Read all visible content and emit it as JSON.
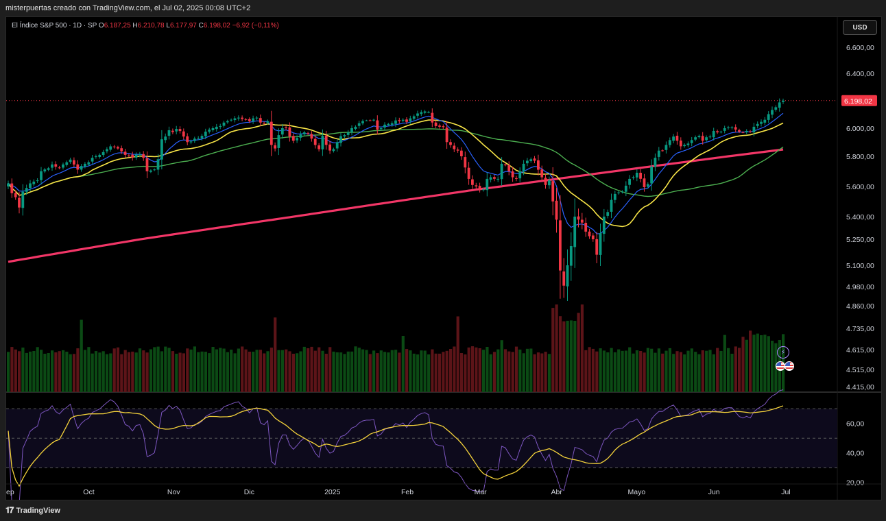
{
  "header": {
    "caption": "misterpuertas creado con TradingView.com, el Jul 02, 2025 00:08 UTC+2"
  },
  "legend": {
    "symbol": "El Índice S&P 500 · 1D · SP",
    "o_label": "O",
    "o_value": "6.187,25",
    "h_label": "H",
    "h_value": "6.210,78",
    "l_label": "L",
    "l_value": "6.177,97",
    "c_label": "C",
    "c_value": "6.198,02",
    "change": "−6,92 (−0,11%)"
  },
  "currency": "USD",
  "footer": {
    "brand": "TradingView"
  },
  "colors": {
    "up": "#089981",
    "down": "#f23645",
    "vol_up": "#0b4a14",
    "vol_down": "#5c1418",
    "ma_blue": "#2962ff",
    "ma_yellow": "#f7e447",
    "ma_green": "#4caf50",
    "ma_red": "#f23667",
    "rsi_line": "#7e57c2",
    "rsi_ma": "#f5d33b",
    "price_tag": "#f23645"
  },
  "chart_data": {
    "type": "candlestick",
    "price_axis": {
      "ticks": [
        {
          "v": 6600,
          "label": "6.600,00"
        },
        {
          "v": 6400,
          "label": "6.400,00"
        },
        {
          "v": 6000,
          "label": "6.000,00"
        },
        {
          "v": 5800,
          "label": "5.800,00"
        },
        {
          "v": 5600,
          "label": "5.600,00"
        },
        {
          "v": 5400,
          "label": "5.400,00"
        },
        {
          "v": 5250,
          "label": "5.250,00"
        },
        {
          "v": 5100,
          "label": "5.100,00"
        },
        {
          "v": 4980,
          "label": "4.980,00"
        },
        {
          "v": 4860,
          "label": "4.860,00"
        },
        {
          "v": 4735,
          "label": "4.735,00"
        },
        {
          "v": 4615,
          "label": "4.615,00"
        },
        {
          "v": 4515,
          "label": "4.515,00"
        },
        {
          "v": 4415,
          "label": "4.415,00"
        }
      ],
      "last_price": 6198.02,
      "last_label": "6.198,02",
      "scale": "log"
    },
    "rsi_axis": {
      "ticks": [
        {
          "v": 60,
          "label": "60,00"
        },
        {
          "v": 40,
          "label": "40,00"
        },
        {
          "v": 20,
          "label": "20,00"
        }
      ],
      "levels": [
        70,
        50,
        30
      ]
    },
    "time_axis": {
      "labels": [
        {
          "i": 0,
          "label": "ep"
        },
        {
          "i": 22,
          "label": "Oct"
        },
        {
          "i": 45,
          "label": "Nov"
        },
        {
          "i": 66,
          "label": "Dic"
        },
        {
          "i": 88,
          "label": "2025"
        },
        {
          "i": 109,
          "label": "Feb"
        },
        {
          "i": 129,
          "label": "Mar"
        },
        {
          "i": 150,
          "label": "Abr"
        },
        {
          "i": 171,
          "label": "Mayo"
        },
        {
          "i": 193,
          "label": "Jun"
        },
        {
          "i": 213,
          "label": "Jul"
        }
      ]
    },
    "closes": [
      5620,
      5555,
      5528,
      5460,
      5565,
      5590,
      5620,
      5632,
      5640,
      5700,
      5712,
      5720,
      5745,
      5730,
      5724,
      5745,
      5760,
      5778,
      5745,
      5711,
      5735,
      5750,
      5760,
      5790,
      5800,
      5810,
      5830,
      5850,
      5870,
      5865,
      5855,
      5835,
      5810,
      5805,
      5792,
      5812,
      5815,
      5790,
      5700,
      5705,
      5712,
      5780,
      5920,
      5940,
      5985,
      5972,
      5995,
      5980,
      5940,
      5900,
      5905,
      5925,
      5930,
      5945,
      5975,
      5990,
      6000,
      6010,
      6015,
      6040,
      6050,
      6060,
      6070,
      6075,
      6065,
      6060,
      6050,
      6070,
      6075,
      6040,
      6035,
      6050,
      5880,
      5855,
      5950,
      6000,
      6000,
      5940,
      5910,
      5930,
      5955,
      5970,
      5960,
      5925,
      5880,
      5850,
      5945,
      5880,
      5840,
      5850,
      5900,
      5942,
      5950,
      5970,
      6000,
      6010,
      6035,
      6050,
      6055,
      6055,
      6060,
      5990,
      6000,
      6025,
      6030,
      6035,
      6055,
      6050,
      6060,
      6045,
      6070,
      6085,
      6105,
      6115,
      6120,
      6115,
      6040,
      6015,
      6010,
      6008,
      5900,
      5880,
      5850,
      5840,
      5800,
      5725,
      5650,
      5610,
      5600,
      5580,
      5580,
      5650,
      5660,
      5650,
      5650,
      5750,
      5740,
      5700,
      5660,
      5650,
      5700,
      5750,
      5770,
      5780,
      5770,
      5710,
      5660,
      5610,
      5640,
      5500,
      5380,
      5070,
      4985,
      5100,
      5210,
      5400,
      5380,
      5360,
      5300,
      5270,
      5250,
      5160,
      5290,
      5400,
      5430,
      5510,
      5550,
      5560,
      5565,
      5605,
      5650,
      5660,
      5690,
      5650,
      5595,
      5615,
      5730,
      5790,
      5840,
      5840,
      5880,
      5915,
      5940,
      5910,
      5870,
      5880,
      5890,
      5915,
      5935,
      5945,
      5910,
      5935,
      5940,
      5980,
      5970,
      5975,
      6000,
      6005,
      6005,
      5990,
      5975,
      5970,
      5980,
      5975,
      6010,
      6030,
      6045,
      6060,
      6100,
      6130,
      6150,
      6185,
      6198.02
    ]
  }
}
